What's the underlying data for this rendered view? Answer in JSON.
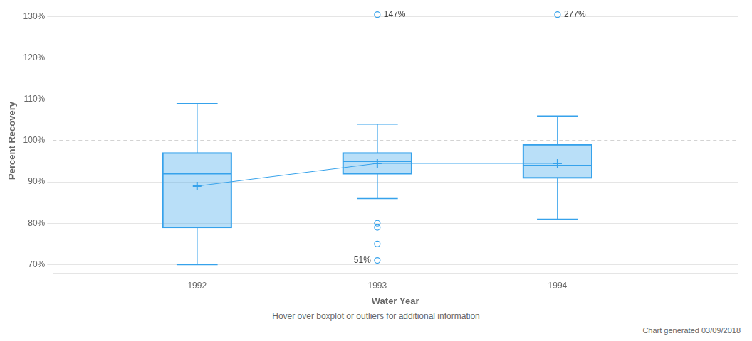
{
  "chart_data": {
    "type": "box",
    "xlabel": "Water Year",
    "ylabel": "Percent Recovery",
    "x": [
      1992,
      1993,
      1994
    ],
    "boxes": [
      {
        "q1": 79,
        "median": 92,
        "q3": 97,
        "whisker_low": 70,
        "whisker_high": 109,
        "mean": 89
      },
      {
        "q1": 92,
        "median": 95,
        "q3": 97,
        "whisker_low": 86,
        "whisker_high": 104,
        "mean": 94.5
      },
      {
        "q1": 91,
        "median": 94,
        "q3": 99,
        "whisker_low": 81,
        "whisker_high": 106,
        "mean": 94.5
      }
    ],
    "outliers": [
      [],
      [
        80,
        79,
        75,
        71
      ],
      []
    ],
    "labeled_outliers": [
      {
        "x": 1993,
        "y": 130.5,
        "label": "147%"
      },
      {
        "x": 1994,
        "y": 130.5,
        "label": "277%"
      }
    ],
    "annotations": [
      {
        "text": "51%",
        "x": 1993,
        "y": 71
      }
    ],
    "reference_line": 100,
    "xlim": [
      1991.2,
      1995.0
    ],
    "xticks": [
      1992,
      1993,
      1994
    ],
    "ylim": [
      68,
      132
    ],
    "yticks": [
      {
        "value": 70,
        "label": "70%"
      },
      {
        "value": 80,
        "label": "80%"
      },
      {
        "value": 90,
        "label": "90%"
      },
      {
        "value": 100,
        "label": "100%"
      },
      {
        "value": 110,
        "label": "110%"
      },
      {
        "value": 120,
        "label": "120%"
      },
      {
        "value": 130,
        "label": "130%"
      }
    ],
    "grid": "y",
    "color": "#36a2eb",
    "footnote": "Hover over boxplot or outliers for additional information",
    "caption": "Chart generated 03/09/2018"
  }
}
